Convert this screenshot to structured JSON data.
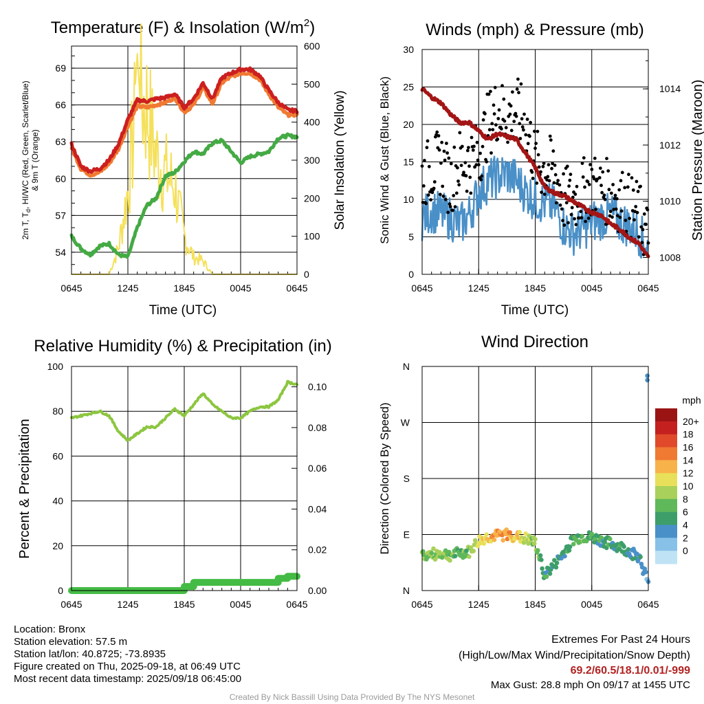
{
  "time_ticks": [
    "0645",
    "1245",
    "1845",
    "0045",
    "0645"
  ],
  "panels": {
    "temp": {
      "title_text": "Temperature (F) & Insolation (W/m",
      "title_sup": "2",
      "title_close": ")",
      "ylabel_left": "2m T, T_d, HI/WC (Red, Green, Scarlet/Blue) & 9m T (Orange)",
      "ylabel_left_line1": "2m T, T",
      "ylabel_left_sub": "d",
      "ylabel_left_line1b": ", HI/WC (Red, Green, Scarlet/Blue)",
      "ylabel_left_line2": "& 9m T (Orange)",
      "ylabel_right": "Solar Insolation (Yellow)",
      "xlabel": "Time (UTC)",
      "yticks_left": [
        54,
        57,
        60,
        63,
        66,
        69
      ],
      "yticks_right": [
        0,
        100,
        200,
        300,
        400,
        500,
        600
      ]
    },
    "wind": {
      "title": "Winds (mph) & Pressure (mb)",
      "ylabel_left": "Sonic Wind & Gust (Blue, Black)",
      "ylabel_right": "Station Pressure (Maroon)",
      "xlabel": "Time (UTC)",
      "yticks_left": [
        0,
        5,
        10,
        15,
        20,
        25,
        30
      ],
      "yticks_right": [
        1008,
        1010,
        1012,
        1014
      ]
    },
    "rh": {
      "title": "Relative Humidity (%) & Precipitation (in)",
      "ylabel_left": "Percent & Precipitation",
      "yticks_left": [
        0,
        20,
        40,
        60,
        80,
        100
      ],
      "yticks_right": [
        "0.00",
        "0.02",
        "0.04",
        "0.06",
        "0.08",
        "0.10"
      ]
    },
    "dir": {
      "title": "Wind Direction",
      "ylabel_left": "Direction (Colored By Speed)",
      "yticks_left": [
        "N",
        "E",
        "S",
        "W",
        "N"
      ],
      "legend_title": "mph",
      "legend_labels": [
        "0",
        "2",
        "4",
        "6",
        "8",
        "10",
        "12",
        "14",
        "16",
        "18",
        "20+"
      ],
      "legend_colors": [
        "#bfe3f5",
        "#88c1e8",
        "#4a90c8",
        "#3d9e6a",
        "#5fb85a",
        "#a9d05a",
        "#e8e05a",
        "#f8b24a",
        "#f07a32",
        "#e04a2a",
        "#c42020",
        "#9a1414"
      ]
    }
  },
  "chart_data": [
    {
      "type": "line",
      "title": "Temperature (F) & Insolation (W/m2)",
      "xlabel": "Time (UTC)",
      "ylabel": "2m T, Td, HI/WC (Red, Green, Scarlet/Blue) & 9m T (Orange)",
      "y2label": "Solar Insolation (Yellow)",
      "x_hours": [
        0,
        1,
        2,
        3,
        4,
        5,
        6,
        7,
        8,
        9,
        10,
        11,
        12,
        13,
        14,
        15,
        16,
        17,
        18,
        19,
        20,
        21,
        22,
        23,
        24
      ],
      "xlim_hours": [
        0,
        24
      ],
      "ylim": [
        52.2,
        70.8
      ],
      "y2lim": [
        0,
        600
      ],
      "series": [
        {
          "name": "2m T",
          "color": "#cc1f1f",
          "axis": "left",
          "values": [
            62.8,
            61.0,
            60.6,
            60.8,
            61.5,
            62.8,
            64.8,
            66.4,
            66.3,
            66.5,
            66.6,
            66.9,
            65.8,
            66.5,
            67.8,
            66.5,
            68.2,
            68.6,
            68.9,
            68.9,
            68.4,
            67.2,
            66.2,
            65.6,
            65.5
          ]
        },
        {
          "name": "9m T",
          "color": "#f07a32",
          "axis": "left",
          "values": [
            62.5,
            60.8,
            60.3,
            60.5,
            61.2,
            62.4,
            64.3,
            65.9,
            65.8,
            66.0,
            66.2,
            66.6,
            65.4,
            66.0,
            67.4,
            66.1,
            67.8,
            68.3,
            68.6,
            68.6,
            68.1,
            66.9,
            65.8,
            65.2,
            65.2
          ]
        },
        {
          "name": "Td",
          "color": "#44aa44",
          "axis": "left",
          "values": [
            55.3,
            54.3,
            53.8,
            54.5,
            54.7,
            53.8,
            53.6,
            56.0,
            57.8,
            58.4,
            60.2,
            60.5,
            61.4,
            62.2,
            62.0,
            62.9,
            63.1,
            62.2,
            61.3,
            61.8,
            62.0,
            62.2,
            63.3,
            63.5,
            63.4
          ]
        },
        {
          "name": "Solar Insolation",
          "color": "#f5e05a",
          "axis": "right",
          "values": [
            0,
            0,
            0,
            0,
            0,
            70,
            220,
            470,
            440,
            310,
            265,
            230,
            100,
            45,
            35,
            0,
            0,
            0,
            0,
            0,
            0,
            0,
            0,
            0,
            0
          ]
        }
      ]
    },
    {
      "type": "line",
      "title": "Winds (mph) & Pressure (mb)",
      "xlabel": "Time (UTC)",
      "ylabel": "Sonic Wind & Gust (Blue, Black)",
      "y2label": "Station Pressure (Maroon)",
      "x_hours": [
        0,
        1,
        2,
        3,
        4,
        5,
        6,
        7,
        8,
        9,
        10,
        11,
        12,
        13,
        14,
        15,
        16,
        17,
        18,
        19,
        20,
        21,
        22,
        23,
        24
      ],
      "xlim_hours": [
        0,
        24
      ],
      "ylim": [
        0,
        30
      ],
      "y2lim": [
        1007.4,
        1015.4
      ],
      "series": [
        {
          "name": "Sonic Wind",
          "color": "#4a90c8",
          "axis": "left",
          "values": [
            7.5,
            8.5,
            8.0,
            7.5,
            6.5,
            8.0,
            11.0,
            12.5,
            13.0,
            13.5,
            12.5,
            11.0,
            10.0,
            9.5,
            9.0,
            6.5,
            5.5,
            6.0,
            7.0,
            7.5,
            8.0,
            7.0,
            6.5,
            5.5,
            3.5
          ]
        },
        {
          "name": "Gust",
          "color": "#000000",
          "axis": "left",
          "values": [
            13,
            14,
            15,
            12,
            15,
            15,
            16,
            20,
            22,
            21,
            22,
            20,
            15,
            14,
            14,
            10,
            10,
            11,
            12,
            11,
            11,
            10,
            9,
            8,
            5
          ]
        },
        {
          "name": "Station Pressure",
          "color": "#a31515",
          "axis": "right",
          "values": [
            1014.0,
            1013.7,
            1013.5,
            1013.1,
            1012.8,
            1012.8,
            1012.5,
            1012.2,
            1012.4,
            1012.3,
            1012.2,
            1011.7,
            1011.2,
            1010.5,
            1010.3,
            1010.2,
            1010.0,
            1009.8,
            1009.6,
            1009.5,
            1009.2,
            1009.0,
            1008.7,
            1008.5,
            1008.0
          ]
        }
      ]
    },
    {
      "type": "line",
      "title": "Relative Humidity (%) & Precipitation (in)",
      "ylabel": "Percent & Precipitation",
      "x_hours": [
        0,
        1,
        2,
        3,
        4,
        5,
        6,
        7,
        8,
        9,
        10,
        11,
        12,
        13,
        14,
        15,
        16,
        17,
        18,
        19,
        20,
        21,
        22,
        23,
        24
      ],
      "xlim_hours": [
        0,
        24
      ],
      "ylim": [
        0,
        100
      ],
      "y2lim": [
        0,
        0.11
      ],
      "series": [
        {
          "name": "Relative Humidity",
          "color": "#8cc63f",
          "axis": "left",
          "values": [
            77,
            78,
            79,
            80,
            78,
            71,
            67,
            70,
            73,
            73,
            77,
            81,
            78,
            83,
            88,
            83,
            80,
            77,
            77,
            80,
            82,
            82,
            85,
            93,
            92
          ]
        },
        {
          "name": "Precipitation",
          "color": "#44bb44",
          "axis": "right",
          "values": [
            0,
            0,
            0,
            0,
            0,
            0,
            0,
            0,
            0,
            0,
            0,
            0,
            0.002,
            0.004,
            0.004,
            0.004,
            0.004,
            0.004,
            0.004,
            0.004,
            0.004,
            0.004,
            0.006,
            0.007,
            0.007
          ]
        }
      ]
    },
    {
      "type": "scatter",
      "title": "Wind Direction",
      "ylabel": "Direction (Colored By Speed)",
      "xlim_hours": [
        0,
        24
      ],
      "ylim_deg": [
        0,
        360
      ],
      "x_hours": [
        0,
        1,
        2,
        3,
        4,
        5,
        6,
        7,
        8,
        9,
        10,
        11,
        12,
        13,
        14,
        15,
        16,
        17,
        18,
        19,
        20,
        21,
        22,
        23,
        24
      ],
      "direction_deg": [
        56,
        58,
        60,
        57,
        60,
        62,
        80,
        86,
        88,
        90,
        87,
        83,
        76,
        25,
        40,
        60,
        82,
        86,
        85,
        80,
        75,
        70,
        62,
        55,
        12
      ],
      "speed_mph": [
        8,
        9,
        9,
        8,
        7,
        9,
        11,
        13,
        15,
        15,
        13,
        11,
        9,
        6,
        5,
        6,
        7,
        8,
        7,
        6,
        6,
        6,
        5,
        4,
        3
      ],
      "late_points": [
        {
          "x_hours": 23.9,
          "direction_deg": 345,
          "speed_mph": 4
        },
        {
          "x_hours": 23.9,
          "direction_deg": 338,
          "speed_mph": 4
        }
      ]
    }
  ],
  "info": {
    "location": "Location: Bronx",
    "elevation": "Station elevation: 57.5 m",
    "latlon": "Station lat/lon: 40.8725; -73.8935",
    "created": "Figure created on Thu, 2025-09-18, at 06:49 UTC",
    "recent": "Most recent data timestamp: 2025/09/18 06:45:00"
  },
  "extremes": {
    "title": "Extremes For Past 24 Hours",
    "subtitle": "(High/Low/Max Wind/Precipitation/Snow Depth)",
    "values": "69.2/60.5/18.1/0.01/-999",
    "gust": "Max Gust: 28.8 mph On 09/17 at 1455 UTC"
  },
  "credit": "Created By Nick Bassill Using Data Provided By The NYS Mesonet"
}
